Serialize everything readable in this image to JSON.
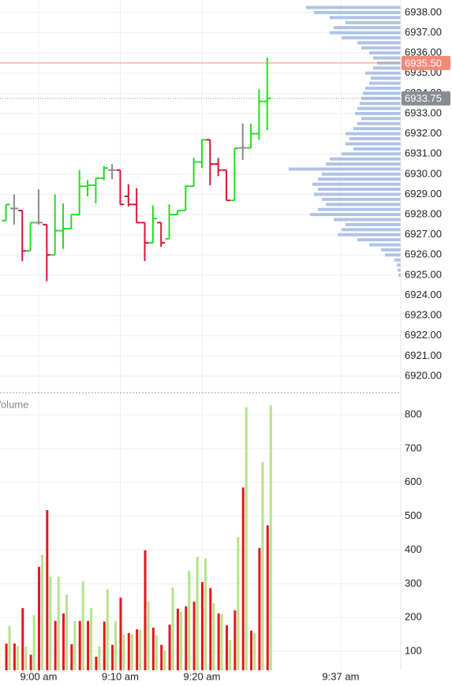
{
  "chart_data": [
    {
      "type": "ohlc",
      "x": [
        536,
        537,
        538,
        539,
        540,
        541,
        542,
        543,
        544,
        545,
        546,
        547,
        548,
        549,
        550,
        551,
        552,
        553,
        554,
        555,
        556,
        557,
        558,
        559,
        560,
        561,
        562,
        563,
        564,
        565,
        566,
        567,
        568
      ],
      "open": [
        6927.7,
        6928.3,
        6928.2,
        6926.2,
        6927.6,
        6927.5,
        6926.0,
        6927.2,
        6927.3,
        6928.0,
        6929.4,
        6929.45,
        6929.8,
        6930.2,
        6930.2,
        6928.9,
        6928.5,
        6927.6,
        6926.6,
        6927.6,
        6926.8,
        6928.0,
        6928.2,
        6929.4,
        6930.6,
        6931.7,
        6930.5,
        6930.2,
        6928.7,
        6931.3,
        6931.3,
        6932.0,
        6933.6
      ],
      "high": [
        6928.5,
        6929.0,
        6928.2,
        6927.6,
        6929.25,
        6927.5,
        6929.0,
        6928.55,
        6928.0,
        6930.2,
        6929.7,
        6929.8,
        6930.4,
        6930.5,
        6930.2,
        6929.5,
        6929.3,
        6927.6,
        6928.45,
        6927.6,
        6928.5,
        6928.2,
        6929.45,
        6930.8,
        6931.7,
        6931.7,
        6930.8,
        6930.2,
        6931.28,
        6932.5,
        6932.5,
        6934.2,
        6935.77
      ],
      "low": [
        6927.7,
        6927.5,
        6925.7,
        6926.2,
        6927.5,
        6924.7,
        6926.0,
        6926.3,
        6927.3,
        6928.0,
        6928.9,
        6928.55,
        6929.7,
        6929.75,
        6928.5,
        6928.4,
        6927.6,
        6925.7,
        6926.6,
        6926.4,
        6926.8,
        6928.0,
        6928.2,
        6929.4,
        6930.3,
        6929.45,
        6929.9,
        6928.7,
        6928.7,
        6930.7,
        6931.3,
        6931.7,
        6932.18
      ],
      "close": [
        6928.5,
        6928.3,
        6926.2,
        6927.6,
        6927.6,
        6926.0,
        6927.2,
        6927.3,
        6928.0,
        6929.4,
        6929.45,
        6929.8,
        6930.3,
        6930.2,
        6928.5,
        6928.5,
        6927.6,
        6926.6,
        6927.8,
        6926.6,
        6928.0,
        6928.2,
        6929.4,
        6930.6,
        6931.7,
        6930.5,
        6930.2,
        6928.7,
        6931.28,
        6931.3,
        6932.0,
        6933.6,
        6933.75
      ],
      "up_color": "#22dd22",
      "down_color": "#dd1133",
      "flat_color": "#8a8a8a",
      "xlim": [
        535.27,
        584.35
      ],
      "ylim": [
        6919.22,
        6938.62
      ],
      "yticks": [
        {
          "value": 6920,
          "label": "6920.00"
        },
        {
          "value": 6921,
          "label": "6921.00"
        },
        {
          "value": 6922,
          "label": "6922.00"
        },
        {
          "value": 6923,
          "label": "6923.00"
        },
        {
          "value": 6924,
          "label": "6924.00"
        },
        {
          "value": 6925,
          "label": "6925.00"
        },
        {
          "value": 6926,
          "label": "6926.00"
        },
        {
          "value": 6927,
          "label": "6927.00"
        },
        {
          "value": 6928,
          "label": "6928.00"
        },
        {
          "value": 6929,
          "label": "6929.00"
        },
        {
          "value": 6930,
          "label": "6930.00"
        },
        {
          "value": 6931,
          "label": "6931.00"
        },
        {
          "value": 6932,
          "label": "6932.00"
        },
        {
          "value": 6933,
          "label": "6933.00"
        },
        {
          "value": 6934,
          "label": "6934.00"
        },
        {
          "value": 6935,
          "label": "6935.00"
        },
        {
          "value": 6936,
          "label": "6936.00"
        },
        {
          "value": 6937,
          "label": "6937.00"
        },
        {
          "value": 6938,
          "label": "6938.00"
        }
      ],
      "markers": [
        {
          "value": 6935.5,
          "label": "6935.50",
          "color": "#f08a76"
        },
        {
          "value": 6933.75,
          "label": "6933.75",
          "color": "#888c94"
        }
      ],
      "profile": {
        "color": "#aec3e6",
        "xlim": [
          0,
          150
        ],
        "prices": [
          6925,
          6925.25,
          6925.5,
          6925.75,
          6926,
          6926.25,
          6926.5,
          6926.75,
          6927,
          6927.25,
          6927.5,
          6927.75,
          6928,
          6928.25,
          6928.5,
          6928.75,
          6929,
          6929.25,
          6929.5,
          6929.75,
          6930,
          6930.25,
          6930.5,
          6930.75,
          6931,
          6931.25,
          6931.5,
          6931.75,
          6932,
          6932.25,
          6932.5,
          6932.75,
          6933,
          6933.25,
          6933.5,
          6933.75,
          6934,
          6934.25,
          6934.5,
          6934.75,
          6935,
          6935.25,
          6935.5,
          6935.75,
          6936,
          6936.25,
          6936.5,
          6936.75,
          6937,
          6937.25,
          6937.5,
          6937.75,
          6938,
          6938.25
        ],
        "values": [
          3,
          4,
          5,
          8,
          20,
          25,
          40,
          55,
          80,
          75,
          70,
          85,
          115,
          105,
          95,
          100,
          110,
          105,
          112,
          105,
          100,
          142,
          95,
          90,
          75,
          60,
          70,
          65,
          70,
          60,
          55,
          50,
          58,
          55,
          52,
          50,
          48,
          45,
          40,
          38,
          45,
          35,
          30,
          35,
          40,
          50,
          55,
          75,
          90,
          85,
          70,
          90,
          110,
          120
        ]
      }
    },
    {
      "type": "bar",
      "title": "Volume",
      "x": [
        536,
        537,
        538,
        539,
        540,
        541,
        542,
        543,
        544,
        545,
        546,
        547,
        548,
        549,
        550,
        551,
        552,
        553,
        554,
        555,
        556,
        557,
        558,
        559,
        560,
        561,
        562,
        563,
        564,
        565,
        566,
        567,
        568
      ],
      "series": [
        {
          "color": "#e8141c",
          "values": [
            123,
            123,
            228,
            90,
            350,
            518,
            190,
            212,
            121,
            190,
            190,
            84,
            188,
            119,
            259,
            154,
            165,
            399,
            170,
            119,
            179,
            226,
            233,
            247,
            305,
            287,
            212,
            177,
            221,
            585,
            161,
            406,
            473
          ]
        },
        {
          "color": "#b5e38a",
          "values": [
            175,
            116,
            114,
            207,
            385,
            321,
            321,
            268,
            190,
            308,
            228,
            114,
            284,
            190,
            149,
            151,
            163,
            247,
            147,
            102,
            289,
            217,
            338,
            380,
            375,
            242,
            210,
            133,
            438,
            823,
            154,
            660,
            828
          ]
        }
      ],
      "xlim": [
        535.27,
        584.35
      ],
      "ylim": [
        44,
        861
      ],
      "yticks": [
        100,
        200,
        300,
        400,
        500,
        600,
        700,
        800
      ],
      "xticks": [
        {
          "value": 540,
          "label": "9:00 am"
        },
        {
          "value": 550,
          "label": "9:10 am"
        },
        {
          "value": 560,
          "label": "9:20 am"
        },
        {
          "value": 577,
          "label": "9:37 am"
        }
      ]
    }
  ]
}
